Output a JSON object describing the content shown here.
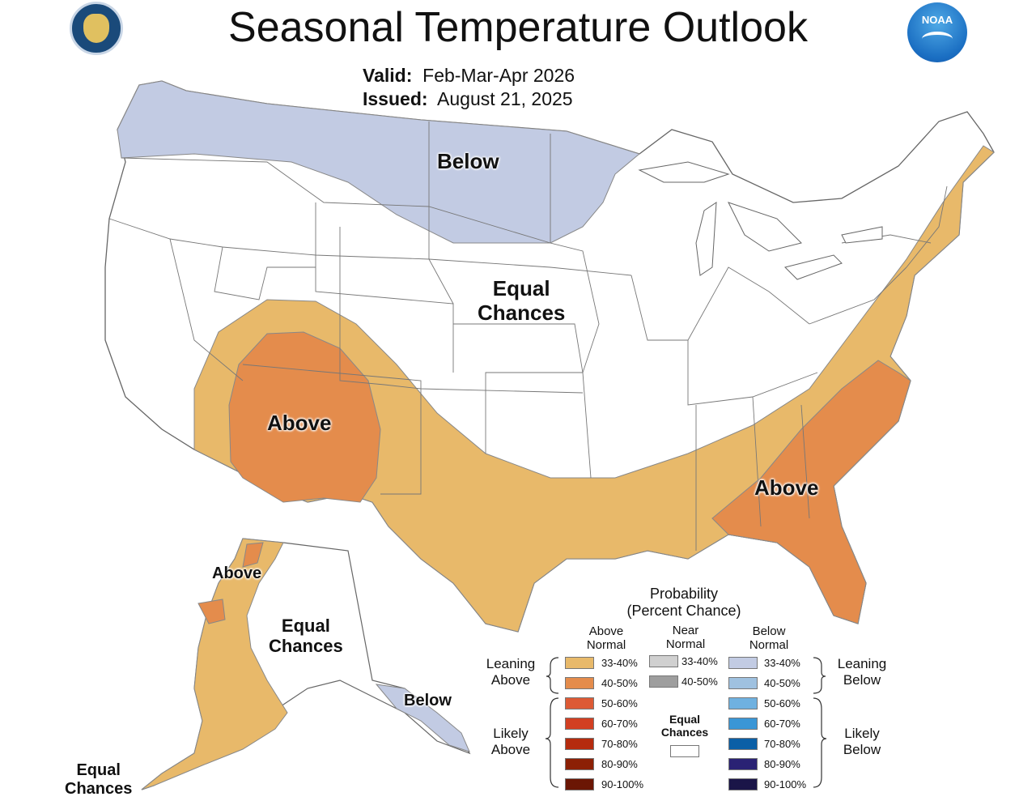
{
  "header": {
    "title": "Seasonal Temperature Outlook",
    "valid_label": "Valid:",
    "valid_value": "Feb-Mar-Apr 2026",
    "issued_label": "Issued:",
    "issued_value": "August 21, 2025"
  },
  "logos": {
    "noaa_text": "NOAA",
    "doc_seal": "Department of Commerce seal"
  },
  "map_labels": {
    "below_north": "Below",
    "equal_chances_center_1": "Equal",
    "equal_chances_center_2": "Chances",
    "above_southwest": "Above",
    "above_southeast": "Above",
    "ak_above": "Above",
    "ak_equal_1": "Equal",
    "ak_equal_2": "Chances",
    "ak_below": "Below",
    "ak_equal_sw_1": "Equal",
    "ak_equal_sw_2": "Chances"
  },
  "legend": {
    "title_1": "Probability",
    "title_2": "(Percent Chance)",
    "above_head_1": "Above",
    "above_head_2": "Normal",
    "near_head_1": "Near",
    "near_head_2": "Normal",
    "below_head_1": "Below",
    "below_head_2": "Normal",
    "leaning_above_1": "Leaning",
    "leaning_above_2": "Above",
    "likely_above_1": "Likely",
    "likely_above_2": "Above",
    "leaning_below_1": "Leaning",
    "leaning_below_2": "Below",
    "likely_below_1": "Likely",
    "likely_below_2": "Below",
    "equal_1": "Equal",
    "equal_2": "Chances",
    "above": [
      {
        "label": "33-40%",
        "color": "#e8b96a"
      },
      {
        "label": "40-50%",
        "color": "#e48c4c"
      },
      {
        "label": "50-60%",
        "color": "#dd5a35"
      },
      {
        "label": "60-70%",
        "color": "#d23f22"
      },
      {
        "label": "70-80%",
        "color": "#b52b0e"
      },
      {
        "label": "80-90%",
        "color": "#8c2005"
      },
      {
        "label": "90-100%",
        "color": "#6b1604"
      }
    ],
    "near": [
      {
        "label": "33-40%",
        "color": "#d0d0d0"
      },
      {
        "label": "40-50%",
        "color": "#9e9e9e"
      }
    ],
    "below": [
      {
        "label": "33-40%",
        "color": "#c2cbe3"
      },
      {
        "label": "40-50%",
        "color": "#9fc1e0"
      },
      {
        "label": "50-60%",
        "color": "#6fb1e0"
      },
      {
        "label": "60-70%",
        "color": "#3a96d6"
      },
      {
        "label": "70-80%",
        "color": "#0b5fa6"
      },
      {
        "label": "80-90%",
        "color": "#2a2274"
      },
      {
        "label": "90-100%",
        "color": "#1a1548"
      }
    ]
  }
}
